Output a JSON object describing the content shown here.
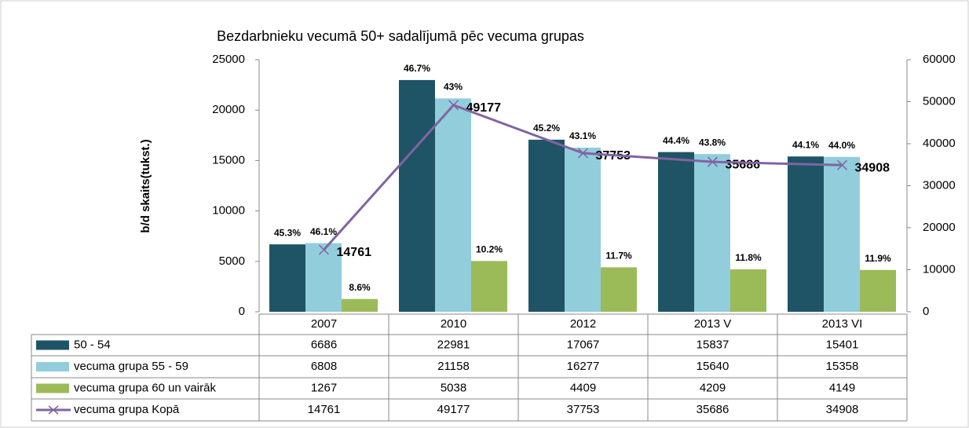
{
  "chart_data": {
    "type": "bar",
    "title": "Bezdarbnieku vecumā 50+ sadalījumā pēc vecuma grupas",
    "y_label": "b/d skaits(tukst.)",
    "categories": [
      "2007",
      "2010",
      "2012",
      "2013 V",
      "2013 VI"
    ],
    "ylim": [
      0,
      25000
    ],
    "yticks": [
      0,
      5000,
      10000,
      15000,
      20000,
      25000
    ],
    "y2lim": [
      0,
      60000
    ],
    "y2ticks": [
      0,
      10000,
      20000,
      30000,
      40000,
      50000,
      60000
    ],
    "series": [
      {
        "name": "50 - 54",
        "color": "#1f5466",
        "values": [
          6686,
          22981,
          17067,
          15837,
          15401
        ],
        "share_labels": [
          "45.3%",
          "46.7%",
          "45.2%",
          "44.4%",
          "44.1%"
        ]
      },
      {
        "name": "vecuma grupa 55 - 59",
        "color": "#92cddc",
        "values": [
          6808,
          21158,
          16277,
          15640,
          15358
        ],
        "share_labels": [
          "46.1%",
          "43%",
          "43.1%",
          "43.8%",
          "44.0%"
        ]
      },
      {
        "name": "vecuma grupa 60 un vairāk",
        "color": "#9bbb59",
        "values": [
          1267,
          5038,
          4409,
          4209,
          4149
        ],
        "share_labels": [
          "8.6%",
          "10.2%",
          "11.7%",
          "11.8%",
          "11.9%"
        ]
      },
      {
        "name": "vecuma grupa Kopā",
        "color": "#8064a2",
        "type": "line",
        "axis": "y2",
        "values": [
          14761,
          49177,
          37753,
          35686,
          34908
        ]
      }
    ]
  }
}
